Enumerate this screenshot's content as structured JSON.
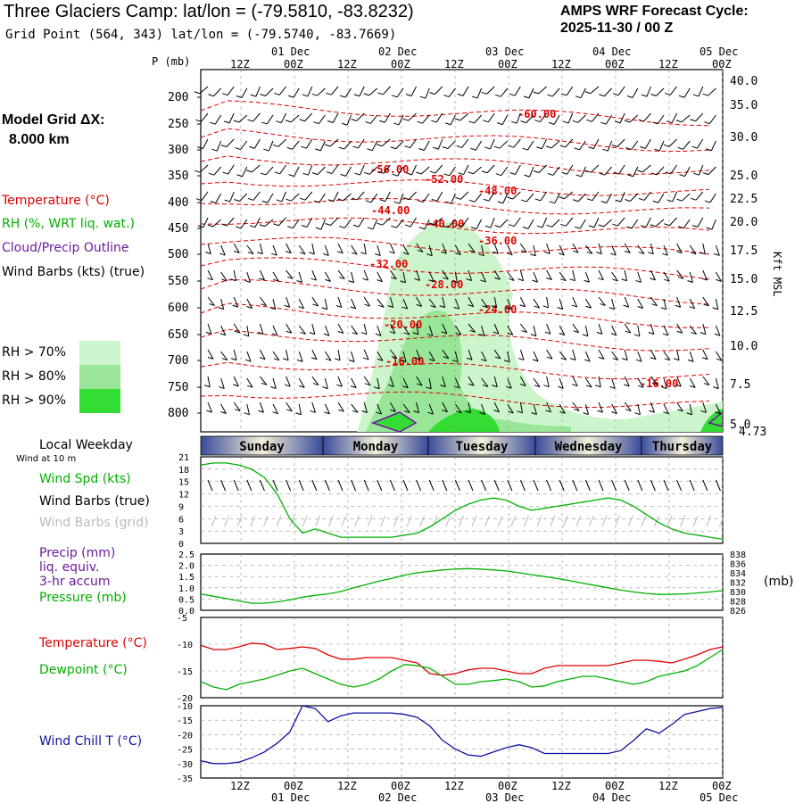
{
  "header": {
    "title": "Three Glaciers Camp:  lat/lon = (-79.5810, -83.8232)",
    "grid_point": "Grid Point (564, 343) lat/lon = (-79.5740, -83.7669)",
    "cycle_label": "AMPS WRF Forecast Cycle:",
    "cycle_value": "2025-11-30 / 00  Z"
  },
  "legend": {
    "model_grid_label": "Model Grid ΔX:",
    "model_grid_value": "8.000 km",
    "temperature": "Temperature (°C)",
    "rh": "RH (%, WRT liq. wat.)",
    "cloud": "Cloud/Precip Outline",
    "wind_barbs": "Wind Barbs (kts) (true)",
    "rh70": "RH > 70%",
    "rh80": "RH > 80%",
    "rh90": "RH > 90%",
    "local_weekday": "Local Weekday",
    "wind_10m": "Wind at 10 m",
    "wind_spd": "Wind Spd (kts)",
    "wind_barbs_true": "Wind Barbs (true)",
    "wind_barbs_grid": "Wind Barbs (grid)",
    "precip1": "Precip (mm)",
    "precip2": "liq. equiv.",
    "precip3": "3-hr accum",
    "pressure": "Pressure (mb)",
    "pressure_unit": "(mb)",
    "temp2": "Temperature (°C)",
    "dewpoint": "Dewpoint (°C)",
    "windchill": "Wind Chill T (°C)",
    "p_axis": "P (mb)",
    "kft_axis": "Kft MSL"
  },
  "colors": {
    "temperature": "#e00000",
    "rh": "#00b000",
    "cloud": "#6a1b9a",
    "windchill": "#1010a0",
    "rh70": "#ccf5cc",
    "rh80": "#99e699",
    "rh90": "#33dd33",
    "grid_barbs": "#bbbbbb"
  },
  "time_axis": {
    "top_dates": [
      "01 Dec",
      "02 Dec",
      "03 Dec",
      "04 Dec",
      "05 Dec"
    ],
    "hour_labels": [
      "12Z",
      "00Z",
      "12Z",
      "00Z",
      "12Z",
      "00Z",
      "12Z",
      "00Z",
      "12Z",
      "00Z"
    ],
    "weekdays": [
      "Sunday",
      "Monday",
      "Tuesday",
      "Wednesday",
      "Thursday"
    ]
  },
  "chart_data": [
    {
      "type": "line",
      "panel": "vertical cross-section",
      "y_axis_left": [
        "200",
        "250",
        "300",
        "350",
        "400",
        "450",
        "500",
        "550",
        "600",
        "650",
        "700",
        "750",
        "800"
      ],
      "y_axis_right": [
        "40.0",
        "35.0",
        "30.0",
        "25.0",
        "22.5",
        "20.0",
        "17.5",
        "15.0",
        "12.5",
        "10.0",
        "7.5",
        "5.0",
        "4.73"
      ],
      "temperature_contours": [
        {
          "label": "-60.00",
          "p": 232
        },
        {
          "label": "-56.00",
          "p": 330
        },
        {
          "label": "-52.00",
          "p": 342
        },
        {
          "label": "-48.00",
          "p": 356
        },
        {
          "label": "-44.00",
          "p": 408
        },
        {
          "label": "-40.00",
          "p": 438
        },
        {
          "label": "-36.00",
          "p": 462
        },
        {
          "label": "-32.00",
          "p": 505
        },
        {
          "label": "-28.00",
          "p": 545
        },
        {
          "label": "-24.00",
          "p": 590
        },
        {
          "label": "-20.00",
          "p": 625
        },
        {
          "label": "-16.00",
          "p": 690
        },
        {
          "label": "-16.00",
          "p": 735
        }
      ]
    },
    {
      "type": "line",
      "panel": "wind",
      "y_ticks": [
        "21",
        "18",
        "15",
        "12",
        "9",
        "6",
        "3",
        "0"
      ],
      "ylim": [
        0,
        21
      ],
      "series": [
        {
          "name": "Wind Spd (kts)",
          "values": [
            19,
            19.5,
            19.5,
            19,
            18,
            16,
            12,
            6,
            2.5,
            3.5,
            2.5,
            1.5,
            1.5,
            1.5,
            1.5,
            1.5,
            2,
            2.5,
            4,
            6,
            8,
            9.5,
            10.5,
            11,
            10.5,
            9,
            8,
            8.5,
            9,
            9.5,
            10,
            10.5,
            11,
            10.5,
            9,
            7,
            5,
            3.5,
            2.5,
            2,
            1.5,
            1
          ]
        }
      ]
    },
    {
      "type": "line",
      "panel": "precip-pressure",
      "y_ticks_left": [
        "2.5",
        "2.0",
        "1.5",
        "1.0",
        "0.5",
        "0.0"
      ],
      "y_ticks_right": [
        "838",
        "836",
        "834",
        "832",
        "830",
        "828",
        "826"
      ],
      "ylim_right": [
        826,
        838
      ],
      "series": [
        {
          "name": "Pressure (mb)",
          "values": [
            829.5,
            829,
            828.5,
            828,
            827.5,
            827.5,
            827.8,
            828.2,
            828.8,
            829.2,
            829.5,
            830,
            830.8,
            831.5,
            832.2,
            832.8,
            833.5,
            834,
            834.3,
            834.6,
            834.8,
            834.9,
            834.8,
            834.6,
            834.4,
            834,
            833.6,
            833.2,
            832.8,
            832.3,
            831.8,
            831.3,
            830.8,
            830.3,
            829.9,
            829.6,
            829.4,
            829.4,
            829.5,
            829.7,
            829.9,
            830.2
          ]
        }
      ]
    },
    {
      "type": "line",
      "panel": "temperature-dewpoint",
      "y_ticks": [
        "-5",
        "-10",
        "-15",
        "-20"
      ],
      "ylim": [
        -20,
        -5
      ],
      "series": [
        {
          "name": "Temperature (°C)",
          "values": [
            -10.2,
            -11,
            -11,
            -10.5,
            -9.8,
            -10,
            -11,
            -10.8,
            -10.5,
            -10.8,
            -12,
            -12.8,
            -12.8,
            -12.5,
            -12.5,
            -12.5,
            -13,
            -13.5,
            -15.5,
            -15.8,
            -15.5,
            -14.8,
            -14.5,
            -14.5,
            -15,
            -15.5,
            -15.5,
            -14.5,
            -14,
            -14,
            -14,
            -14,
            -14,
            -13.5,
            -13,
            -13,
            -13.2,
            -13.5,
            -12.8,
            -12,
            -11,
            -10.5
          ]
        },
        {
          "name": "Dewpoint (°C)",
          "values": [
            -17,
            -18,
            -18.5,
            -17.5,
            -17,
            -16.5,
            -15.8,
            -15,
            -14.5,
            -15.5,
            -16.5,
            -17.5,
            -18,
            -17.5,
            -16.5,
            -15,
            -13.8,
            -14,
            -14.5,
            -16,
            -17.5,
            -17.5,
            -17,
            -16.8,
            -16.5,
            -17,
            -18,
            -17.8,
            -17,
            -16.5,
            -16,
            -16,
            -16.5,
            -17,
            -17.5,
            -17,
            -16,
            -15.5,
            -15,
            -14,
            -12.5,
            -11
          ]
        }
      ]
    },
    {
      "type": "line",
      "panel": "wind chill",
      "y_ticks": [
        "-10",
        "-15",
        "-20",
        "-25",
        "-30",
        "-35"
      ],
      "ylim": [
        -35,
        -10
      ],
      "series": [
        {
          "name": "Wind Chill T (°C)",
          "values": [
            -29,
            -30,
            -30,
            -29.5,
            -28,
            -26,
            -23,
            -19,
            -10,
            -11,
            -15.5,
            -13.5,
            -12.5,
            -12.5,
            -12.5,
            -12.5,
            -13,
            -14,
            -17,
            -22,
            -25,
            -27,
            -27.5,
            -26,
            -24.5,
            -23.5,
            -24.5,
            -26.5,
            -26.5,
            -26.5,
            -26.5,
            -26.5,
            -26.5,
            -25.5,
            -22,
            -18,
            -19.5,
            -16.5,
            -13,
            -12,
            -11,
            -10.5
          ]
        }
      ]
    }
  ]
}
